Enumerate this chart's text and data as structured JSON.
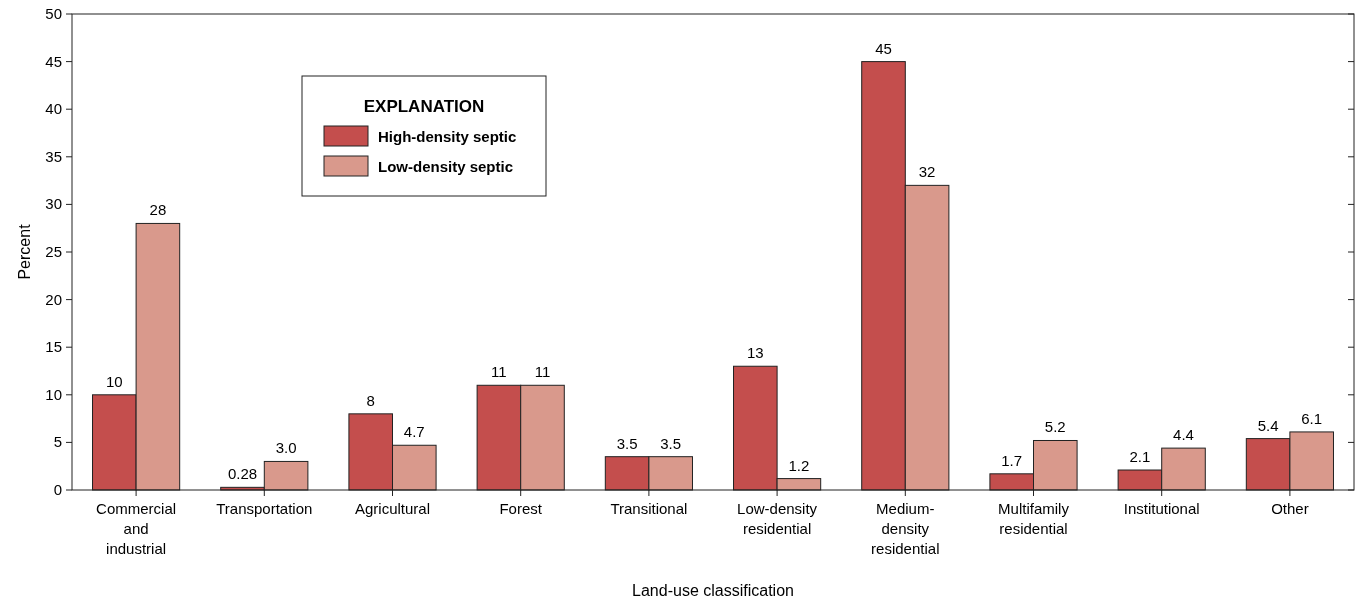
{
  "chart_data": {
    "type": "bar",
    "xlabel": "Land-use classification",
    "ylabel": "Percent",
    "legend_title": "EXPLANATION",
    "legend": "top left",
    "categories": [
      "Commercial and industrial",
      "Transportation",
      "Agricultural",
      "Forest",
      "Transitional",
      "Low-density residential",
      "Medium-density residential",
      "Multifamily residential",
      "Institutional",
      "Other"
    ],
    "series": [
      {
        "name": "High-density septic",
        "color": "#c44e4d",
        "values": [
          10,
          0.28,
          8,
          11,
          3.5,
          13,
          45,
          1.7,
          2.1,
          5.4
        ],
        "value_labels": [
          "10",
          "0.28",
          "8",
          "11",
          "3.5",
          "13",
          "45",
          "1.7",
          "2.1",
          "5.4"
        ]
      },
      {
        "name": "Low-density septic",
        "color": "#d9998c",
        "values": [
          28,
          3.0,
          4.7,
          11,
          3.5,
          1.2,
          32,
          5.2,
          4.4,
          6.1
        ],
        "value_labels": [
          "28",
          "3.0",
          "4.7",
          "11",
          "3.5",
          "1.2",
          "32",
          "5.2",
          "4.4",
          "6.1"
        ]
      }
    ],
    "ylim": [
      0,
      50
    ],
    "yticks": [
      0,
      5,
      10,
      15,
      20,
      25,
      30,
      35,
      40,
      45,
      50
    ],
    "grid": false
  }
}
